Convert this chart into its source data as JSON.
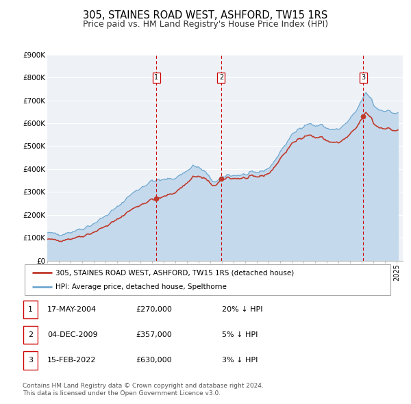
{
  "title": "305, STAINES ROAD WEST, ASHFORD, TW15 1RS",
  "subtitle": "Price paid vs. HM Land Registry's House Price Index (HPI)",
  "ylim": [
    0,
    900000
  ],
  "yticks": [
    0,
    100000,
    200000,
    300000,
    400000,
    500000,
    600000,
    700000,
    800000,
    900000
  ],
  "ytick_labels": [
    "£0",
    "£100K",
    "£200K",
    "£300K",
    "£400K",
    "£500K",
    "£600K",
    "£700K",
    "£800K",
    "£900K"
  ],
  "xlim_start": 1995.0,
  "xlim_end": 2025.5,
  "background_color": "#ffffff",
  "plot_bg_color": "#eef2f7",
  "grid_color": "#ffffff",
  "sale_color": "#c0392b",
  "hpi_fill_color": "#c5d9ec",
  "hpi_line_color": "#6fa8d0",
  "vline_color": "#cc0000",
  "sale_dot_color": "#c0392b",
  "transactions": [
    {
      "num": 1,
      "date_str": "17-MAY-2004",
      "date_x": 2004.37,
      "price": 270000,
      "pct": "20%"
    },
    {
      "num": 2,
      "date_str": "04-DEC-2009",
      "date_x": 2009.92,
      "price": 357000,
      "pct": "5%"
    },
    {
      "num": 3,
      "date_str": "15-FEB-2022",
      "date_x": 2022.12,
      "price": 630000,
      "pct": "3%"
    }
  ],
  "legend_sale_label": "305, STAINES ROAD WEST, ASHFORD, TW15 1RS (detached house)",
  "legend_hpi_label": "HPI: Average price, detached house, Spelthorne",
  "footer_line1": "Contains HM Land Registry data © Crown copyright and database right 2024.",
  "footer_line2": "This data is licensed under the Open Government Licence v3.0.",
  "title_fontsize": 10.5,
  "subtitle_fontsize": 9,
  "tick_fontsize": 7.5,
  "legend_fontsize": 7.5,
  "table_fontsize": 8,
  "footer_fontsize": 6.5
}
